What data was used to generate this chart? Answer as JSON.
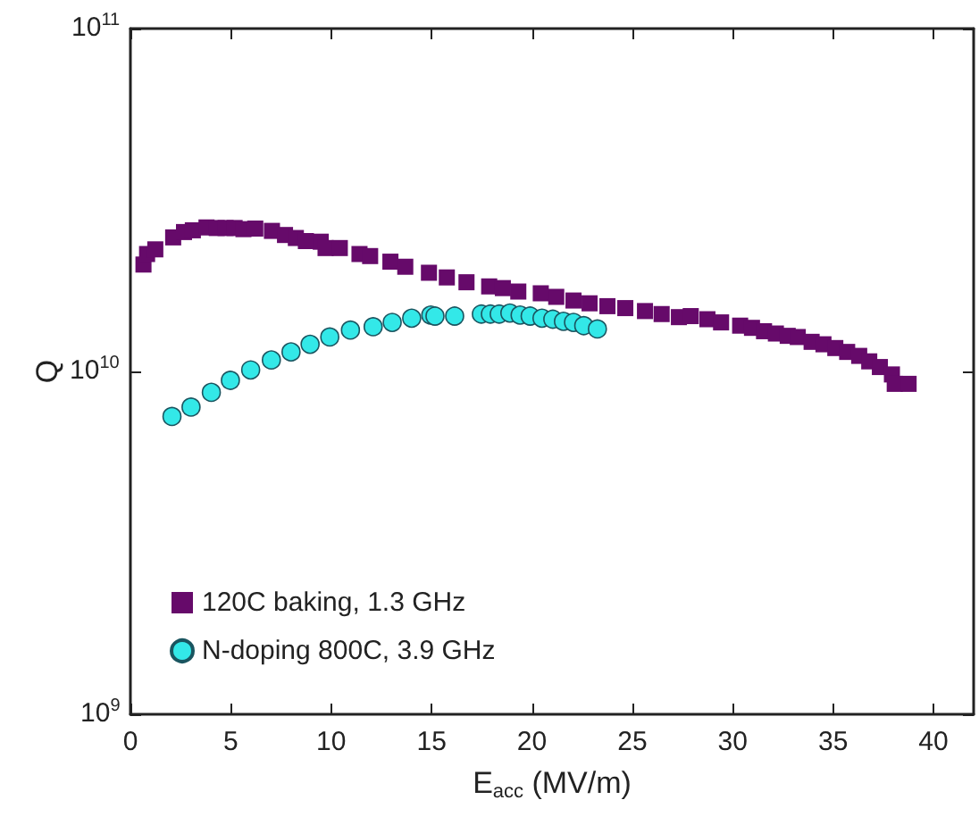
{
  "chart_data": {
    "type": "scatter",
    "xlabel": "E$_{acc}$ (MV/m)",
    "ylabel": "Q",
    "xlim": [
      0,
      42
    ],
    "xticks": [
      0,
      5,
      10,
      15,
      20,
      25,
      30,
      35,
      40
    ],
    "ylim": [
      1000000000,
      100000000000
    ],
    "yticks": [
      {
        "value": 1000000000,
        "label": "10$^{9}$"
      },
      {
        "value": 10000000000,
        "label": "10$^{10}$"
      },
      {
        "value": 100000000000,
        "label": "10$^{11}$"
      }
    ],
    "log": "y",
    "grid": false,
    "legend": "bottom left",
    "series": [
      {
        "name": "120C baking, 1.3 GHz",
        "color": "#660a6a",
        "marker": "square",
        "x": [
          0.65,
          0.83,
          1.24,
          2.13,
          2.67,
          3.11,
          3.79,
          4.3,
          4.74,
          5.19,
          5.63,
          6.22,
          7.05,
          7.7,
          8.24,
          8.74,
          9.48,
          9.72,
          10.43,
          11.41,
          11.94,
          12.95,
          13.69,
          14.87,
          15.76,
          16.74,
          17.87,
          18.55,
          19.32,
          20.44,
          21.21,
          22.07,
          22.87,
          23.76,
          24.65,
          25.63,
          26.46,
          27.32,
          27.91,
          28.74,
          29.42,
          30.37,
          30.96,
          31.56,
          32.15,
          32.74,
          33.24,
          33.93,
          34.52,
          35.11,
          35.7,
          36.3,
          36.8,
          37.33,
          37.93,
          38.07,
          38.76
        ],
        "values": [
          20500000000,
          22000000000,
          22700000000,
          24600000000,
          25500000000,
          25800000000,
          26300000000,
          26200000000,
          26200000000,
          26200000000,
          26000000000,
          26100000000,
          25700000000,
          25000000000,
          24500000000,
          24000000000,
          23900000000,
          22900000000,
          22900000000,
          22000000000,
          21700000000,
          20900000000,
          20200000000,
          19400000000,
          18800000000,
          18200000000,
          17700000000,
          17500000000,
          17100000000,
          16900000000,
          16500000000,
          16100000000,
          15800000000,
          15500000000,
          15300000000,
          15000000000,
          14700000000,
          14400000000,
          14500000000,
          14200000000,
          13900000000,
          13600000000,
          13400000000,
          13100000000,
          12900000000,
          12700000000,
          12600000000,
          12200000000,
          12000000000,
          11700000000,
          11400000000,
          11100000000,
          10700000000,
          10300000000,
          9800000000,
          9200000000,
          9200000000
        ]
      },
      {
        "name": "N-doping 800C, 3.9 GHz",
        "color": "#33e8e8",
        "marker": "circle",
        "x": [
          2.07,
          3.02,
          4.03,
          4.98,
          5.99,
          7.02,
          8.0,
          8.95,
          9.93,
          10.96,
          12.09,
          13.04,
          14.01,
          14.96,
          15.17,
          16.15,
          17.48,
          17.93,
          18.37,
          18.9,
          19.41,
          19.91,
          20.5,
          21.04,
          21.57,
          22.07,
          22.58,
          23.26
        ],
        "values": [
          7390000000,
          7870000000,
          8690000000,
          9420000000,
          10100000000,
          10800000000,
          11400000000,
          12000000000,
          12600000000,
          13200000000,
          13500000000,
          13900000000,
          14300000000,
          14600000000,
          14500000000,
          14500000000,
          14700000000,
          14700000000,
          14700000000,
          14800000000,
          14600000000,
          14500000000,
          14300000000,
          14200000000,
          14000000000,
          13900000000,
          13600000000,
          13300000000
        ]
      }
    ]
  }
}
